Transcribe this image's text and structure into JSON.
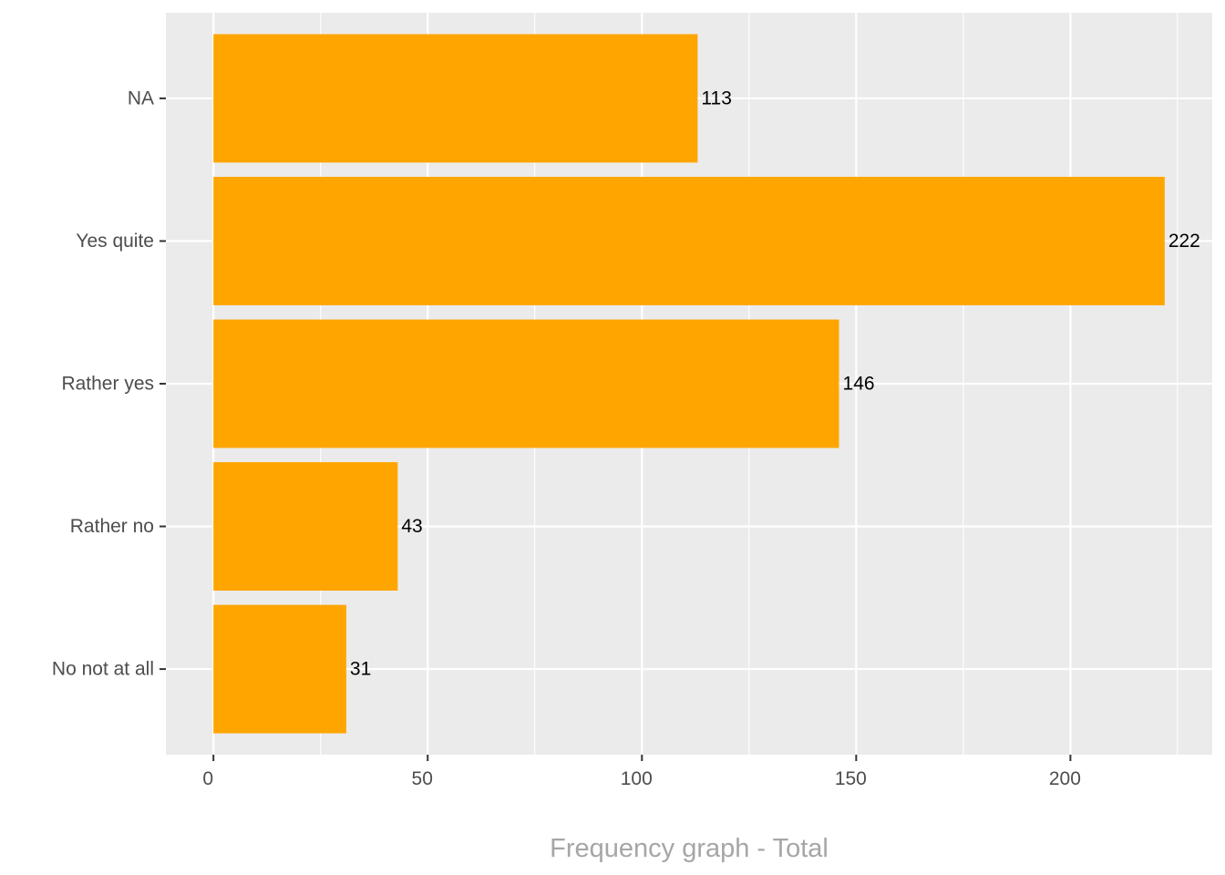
{
  "chart_data": {
    "type": "bar",
    "orientation": "horizontal",
    "categories": [
      "NA",
      "Yes quite",
      "Rather yes",
      "Rather no",
      "No not at all"
    ],
    "values": [
      113,
      222,
      146,
      43,
      31
    ],
    "data_labels": [
      "113",
      "222",
      "146",
      "43",
      "31"
    ],
    "xlabel": "Frequency graph - Total",
    "ylabel": "",
    "xlim": [
      -11.1,
      233.1
    ],
    "xticks": [
      0,
      50,
      100,
      150,
      200
    ],
    "xtick_labels": [
      "0",
      "50",
      "100",
      "150",
      "200"
    ],
    "grid": true,
    "legend": "none",
    "colors": {
      "bar": "#FFA500",
      "panel_background": "#EBEBEB",
      "gridline": "#FFFFFF",
      "tick_label": "#4D4D4D",
      "data_label": "#000000",
      "axis_title": "#A6A6A6"
    }
  }
}
